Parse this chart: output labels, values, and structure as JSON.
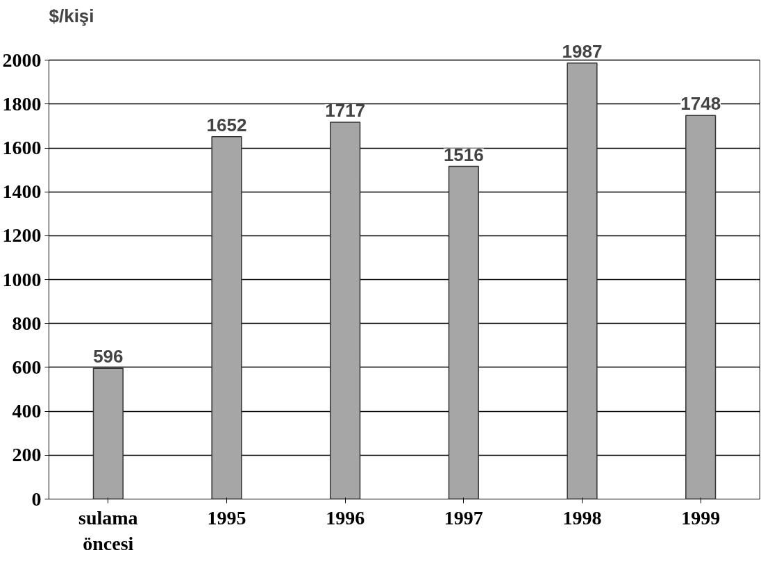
{
  "chart_data": {
    "type": "bar",
    "ylabel": "$/kişi",
    "categories": [
      "sulama öncesi",
      "1995",
      "1996",
      "1997",
      "1998",
      "1999"
    ],
    "values": [
      596,
      1652,
      1717,
      1516,
      1987,
      1748
    ],
    "color": "#a6a6a6",
    "data_labels": true,
    "grid": "y",
    "ylim": [
      0,
      2000
    ],
    "yticks": [
      0,
      200,
      400,
      600,
      800,
      1000,
      1200,
      1400,
      1600,
      1800,
      2000
    ]
  }
}
